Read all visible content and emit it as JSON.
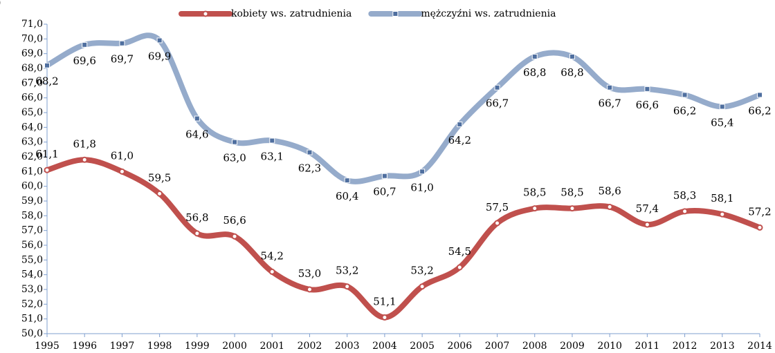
{
  "chart_data": {
    "type": "line",
    "annotation": ")",
    "categories": [
      "1995",
      "1996",
      "1997",
      "1998",
      "1999",
      "2000",
      "2001",
      "2002",
      "2003",
      "2004",
      "2005",
      "2006",
      "2007",
      "2008",
      "2009",
      "2010",
      "2011",
      "2012",
      "2013",
      "2014"
    ],
    "series": [
      {
        "name": "kobiety ws. zatrudnienia",
        "color": "#c0504d",
        "values": [
          61.1,
          61.8,
          61.0,
          59.5,
          56.8,
          56.6,
          54.2,
          53.0,
          53.2,
          51.1,
          53.2,
          54.5,
          57.5,
          58.5,
          58.5,
          58.6,
          57.4,
          58.3,
          58.1,
          57.2
        ],
        "value_labels": [
          "61,1",
          "61,8",
          "61,0",
          "59,5",
          "56,8",
          "56,6",
          "54,2",
          "53,0",
          "53,2",
          "51,1",
          "53,2",
          "54,5",
          "57,5",
          "58,5",
          "58,5",
          "58,6",
          "57,4",
          "58,3",
          "58,1",
          "57,2"
        ]
      },
      {
        "name": "mężczyźni ws. zatrudnienia",
        "color": "#95abcb",
        "values": [
          68.2,
          69.6,
          69.7,
          69.9,
          64.6,
          63.0,
          63.1,
          62.3,
          60.4,
          60.7,
          61.0,
          64.2,
          66.7,
          68.8,
          68.8,
          66.7,
          66.6,
          66.2,
          65.4,
          66.2
        ],
        "value_labels": [
          "68,2",
          "69,6",
          "69,7",
          "69,9",
          "64,6",
          "63,0",
          "63,1",
          "62,3",
          "60,4",
          "60,7",
          "61,0",
          "64,2",
          "66,7",
          "68,8",
          "68,8",
          "66,7",
          "66,6",
          "66,2",
          "65,4",
          "66,2"
        ]
      }
    ],
    "ylim": [
      50,
      71
    ],
    "yticks": [
      {
        "value": 50,
        "label": "50,0"
      },
      {
        "value": 51,
        "label": "51,0"
      },
      {
        "value": 52,
        "label": "52,0"
      },
      {
        "value": 53,
        "label": "53,0"
      },
      {
        "value": 54,
        "label": "54,0"
      },
      {
        "value": 55,
        "label": "55,0"
      },
      {
        "value": 56,
        "label": "56,0"
      },
      {
        "value": 57,
        "label": "57,0"
      },
      {
        "value": 58,
        "label": "58,0"
      },
      {
        "value": 59,
        "label": "59,0"
      },
      {
        "value": 60,
        "label": "60,0"
      },
      {
        "value": 61,
        "label": "61,0"
      },
      {
        "value": 62,
        "label": "62,0"
      },
      {
        "value": 63,
        "label": "63,0"
      },
      {
        "value": 64,
        "label": "64,0"
      },
      {
        "value": 65,
        "label": "65,0"
      },
      {
        "value": 66,
        "label": "66,0"
      },
      {
        "value": 67,
        "label": "67,0"
      },
      {
        "value": 68,
        "label": "68,0"
      },
      {
        "value": 69,
        "label": "69,0"
      },
      {
        "value": 70,
        "label": "70,0"
      },
      {
        "value": 71,
        "label": "71,0"
      }
    ],
    "legend": "top",
    "smooth": true
  }
}
